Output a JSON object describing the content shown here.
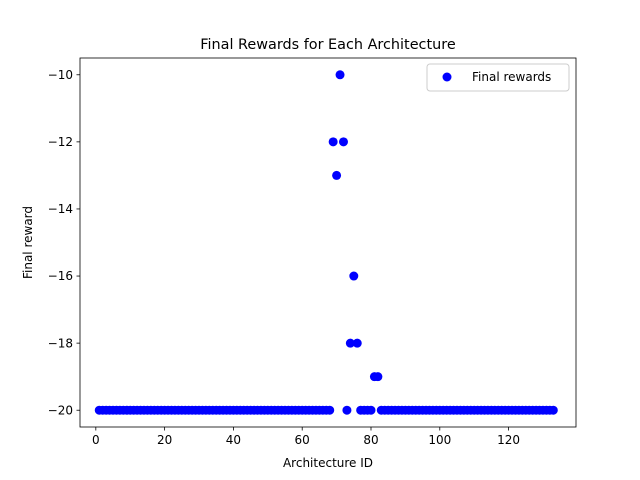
{
  "chart_data": {
    "type": "scatter",
    "title": "Final Rewards for Each Architecture",
    "xlabel": "Architecture ID",
    "ylabel": "Final reward",
    "xlim": [
      -4.6,
      139.6
    ],
    "ylim": [
      -20.5,
      -9.5
    ],
    "xticks": [
      0,
      20,
      40,
      60,
      80,
      100,
      120
    ],
    "yticks": [
      -20,
      -18,
      -16,
      -14,
      -12,
      -10
    ],
    "ytick_labels": [
      "−20",
      "−18",
      "−16",
      "−14",
      "−12",
      "−10"
    ],
    "grid": false,
    "legend_position": "upper right",
    "series": [
      {
        "name": "Final rewards",
        "color": "#0000ff",
        "x": [
          1,
          2,
          3,
          4,
          5,
          6,
          7,
          8,
          9,
          10,
          11,
          12,
          13,
          14,
          15,
          16,
          17,
          18,
          19,
          20,
          21,
          22,
          23,
          24,
          25,
          26,
          27,
          28,
          29,
          30,
          31,
          32,
          33,
          34,
          35,
          36,
          37,
          38,
          39,
          40,
          41,
          42,
          43,
          44,
          45,
          46,
          47,
          48,
          49,
          50,
          51,
          52,
          53,
          54,
          55,
          56,
          57,
          58,
          59,
          60,
          61,
          62,
          63,
          64,
          65,
          66,
          67,
          68,
          69,
          70,
          71,
          72,
          73,
          74,
          75,
          76,
          77,
          78,
          79,
          80,
          81,
          82,
          83,
          84,
          85,
          86,
          87,
          88,
          89,
          90,
          91,
          92,
          93,
          94,
          95,
          96,
          97,
          98,
          99,
          100,
          101,
          102,
          103,
          104,
          105,
          106,
          107,
          108,
          109,
          110,
          111,
          112,
          113,
          114,
          115,
          116,
          117,
          118,
          119,
          120,
          121,
          122,
          123,
          124,
          125,
          126,
          127,
          128,
          129,
          130,
          131,
          132,
          133
        ],
        "y": [
          -20,
          -20,
          -20,
          -20,
          -20,
          -20,
          -20,
          -20,
          -20,
          -20,
          -20,
          -20,
          -20,
          -20,
          -20,
          -20,
          -20,
          -20,
          -20,
          -20,
          -20,
          -20,
          -20,
          -20,
          -20,
          -20,
          -20,
          -20,
          -20,
          -20,
          -20,
          -20,
          -20,
          -20,
          -20,
          -20,
          -20,
          -20,
          -20,
          -20,
          -20,
          -20,
          -20,
          -20,
          -20,
          -20,
          -20,
          -20,
          -20,
          -20,
          -20,
          -20,
          -20,
          -20,
          -20,
          -20,
          -20,
          -20,
          -20,
          -20,
          -20,
          -20,
          -20,
          -20,
          -20,
          -20,
          -20,
          -20,
          -12,
          -13,
          -10,
          -12,
          -20,
          -18,
          -16,
          -18,
          -20,
          -20,
          -20,
          -20,
          -19,
          -19,
          -20,
          -20,
          -20,
          -20,
          -20,
          -20,
          -20,
          -20,
          -20,
          -20,
          -20,
          -20,
          -20,
          -20,
          -20,
          -20,
          -20,
          -20,
          -20,
          -20,
          -20,
          -20,
          -20,
          -20,
          -20,
          -20,
          -20,
          -20,
          -20,
          -20,
          -20,
          -20,
          -20,
          -20,
          -20,
          -20,
          -20,
          -20,
          -20,
          -20,
          -20,
          -20,
          -20,
          -20,
          -20,
          -20,
          -20,
          -20,
          -20,
          -20,
          -20
        ]
      }
    ]
  }
}
